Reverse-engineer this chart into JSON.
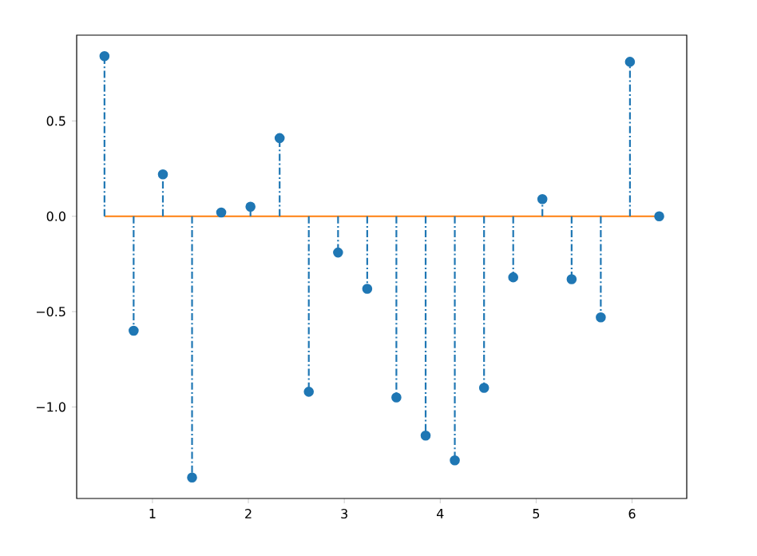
{
  "chart_data": {
    "type": "lollipop",
    "x": [
      0.5,
      0.804,
      1.109,
      1.413,
      1.717,
      2.022,
      2.326,
      2.63,
      2.935,
      3.239,
      3.543,
      3.848,
      4.152,
      4.457,
      4.761,
      5.065,
      5.37,
      5.674,
      5.978,
      6.283
    ],
    "series": [
      {
        "color": "#1f77b4",
        "values": [
          0.84,
          -0.6,
          0.22,
          -1.37,
          0.02,
          0.05,
          0.41,
          -0.92,
          -0.19,
          -0.38,
          -0.95,
          -1.15,
          -1.28,
          -0.9,
          -0.32,
          0.09,
          -0.33,
          -0.53,
          0.81,
          0.0
        ]
      }
    ],
    "xlim": [
      0.21,
      6.57
    ],
    "ylim": [
      -1.48,
      0.95
    ],
    "xticks": [
      1,
      2,
      3,
      4,
      5,
      6
    ],
    "yticks": [
      {
        "value": -1.0,
        "label": "−1.0"
      },
      {
        "value": -0.5,
        "label": "−0.5"
      },
      {
        "value": 0,
        "label": "0.0"
      },
      {
        "value": 0.5,
        "label": "0.5"
      }
    ],
    "marker": "circle",
    "line_style": "dashdot",
    "ref_lines": [
      {
        "axis": "y",
        "value": 0,
        "color": "#ff7f0e"
      }
    ]
  }
}
